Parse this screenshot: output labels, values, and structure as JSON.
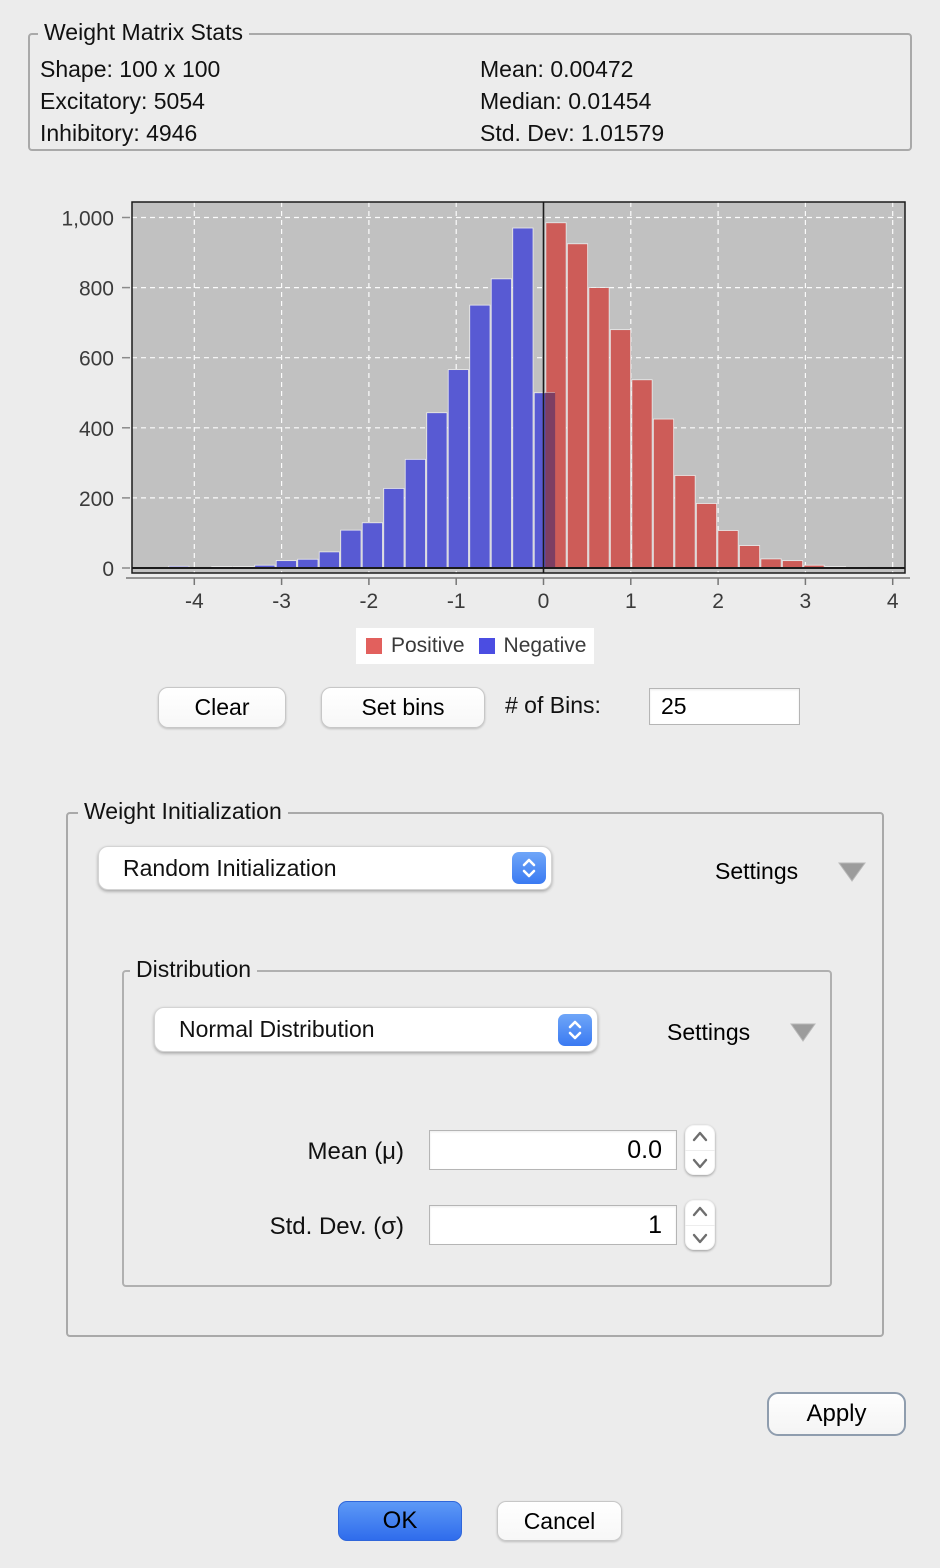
{
  "stats": {
    "title": "Weight Matrix Stats",
    "left": [
      "Shape: 100 x 100",
      "Excitatory: 5054",
      "Inhibitory: 4946"
    ],
    "right": [
      "Mean: 0.00472",
      "Median: 0.01454",
      "Std. Dev: 1.01579"
    ]
  },
  "chart_data": {
    "type": "bar",
    "subtype": "histogram",
    "title": "",
    "xlabel": "",
    "ylabel": "",
    "x_axis": {
      "tick_labels": [
        "-4",
        "-3",
        "-2",
        "-1",
        "0",
        "1",
        "2",
        "3",
        "4"
      ],
      "range": [
        -4.71,
        4.15
      ]
    },
    "y_axis": {
      "ticks": [
        0,
        200,
        400,
        600,
        800,
        1000
      ],
      "tick_labels": [
        "0",
        "200",
        "400",
        "600",
        "800",
        "1,000"
      ],
      "range": [
        0,
        1043
      ]
    },
    "grid": "dashed-white",
    "plot_bg": "#c1c1c1",
    "gridline_color": "#ffffff",
    "overlap_color": "#7d3e63",
    "series": [
      {
        "name": "Positive",
        "color": "#cd5c58",
        "bin_start": 0.02,
        "bin_width": 0.2463,
        "values": [
          985,
          925,
          800,
          680,
          537,
          425,
          264,
          184,
          107,
          64,
          26,
          21,
          8,
          4,
          2
        ]
      },
      {
        "name": "Negative",
        "color": "#585ad3",
        "bin_start": -4.3,
        "bin_width": 0.2463,
        "values": [
          5,
          0,
          4,
          4,
          8,
          21,
          25,
          46,
          108,
          129,
          227,
          310,
          443,
          566,
          750,
          825,
          970,
          500
        ]
      }
    ],
    "legend": [
      {
        "label": "Positive",
        "color": "#e2605d"
      },
      {
        "label": "Negative",
        "color": "#4b4de2"
      }
    ],
    "legend_position": "bottom"
  },
  "controls": {
    "clear": "Clear",
    "set_bins": "Set bins",
    "bins_label": "# of Bins:",
    "bins_value": "25"
  },
  "weight_init": {
    "title": "Weight Initialization",
    "dropdown_value": "Random Initialization",
    "settings_label": "Settings",
    "distribution": {
      "title": "Distribution",
      "dropdown_value": "Normal Distribution",
      "settings_label": "Settings",
      "mean_label": "Mean (μ)",
      "mean_value": "0.0",
      "std_label": "Std. Dev. (σ)",
      "std_value": "1"
    }
  },
  "actions": {
    "apply": "Apply",
    "ok": "OK",
    "cancel": "Cancel"
  }
}
